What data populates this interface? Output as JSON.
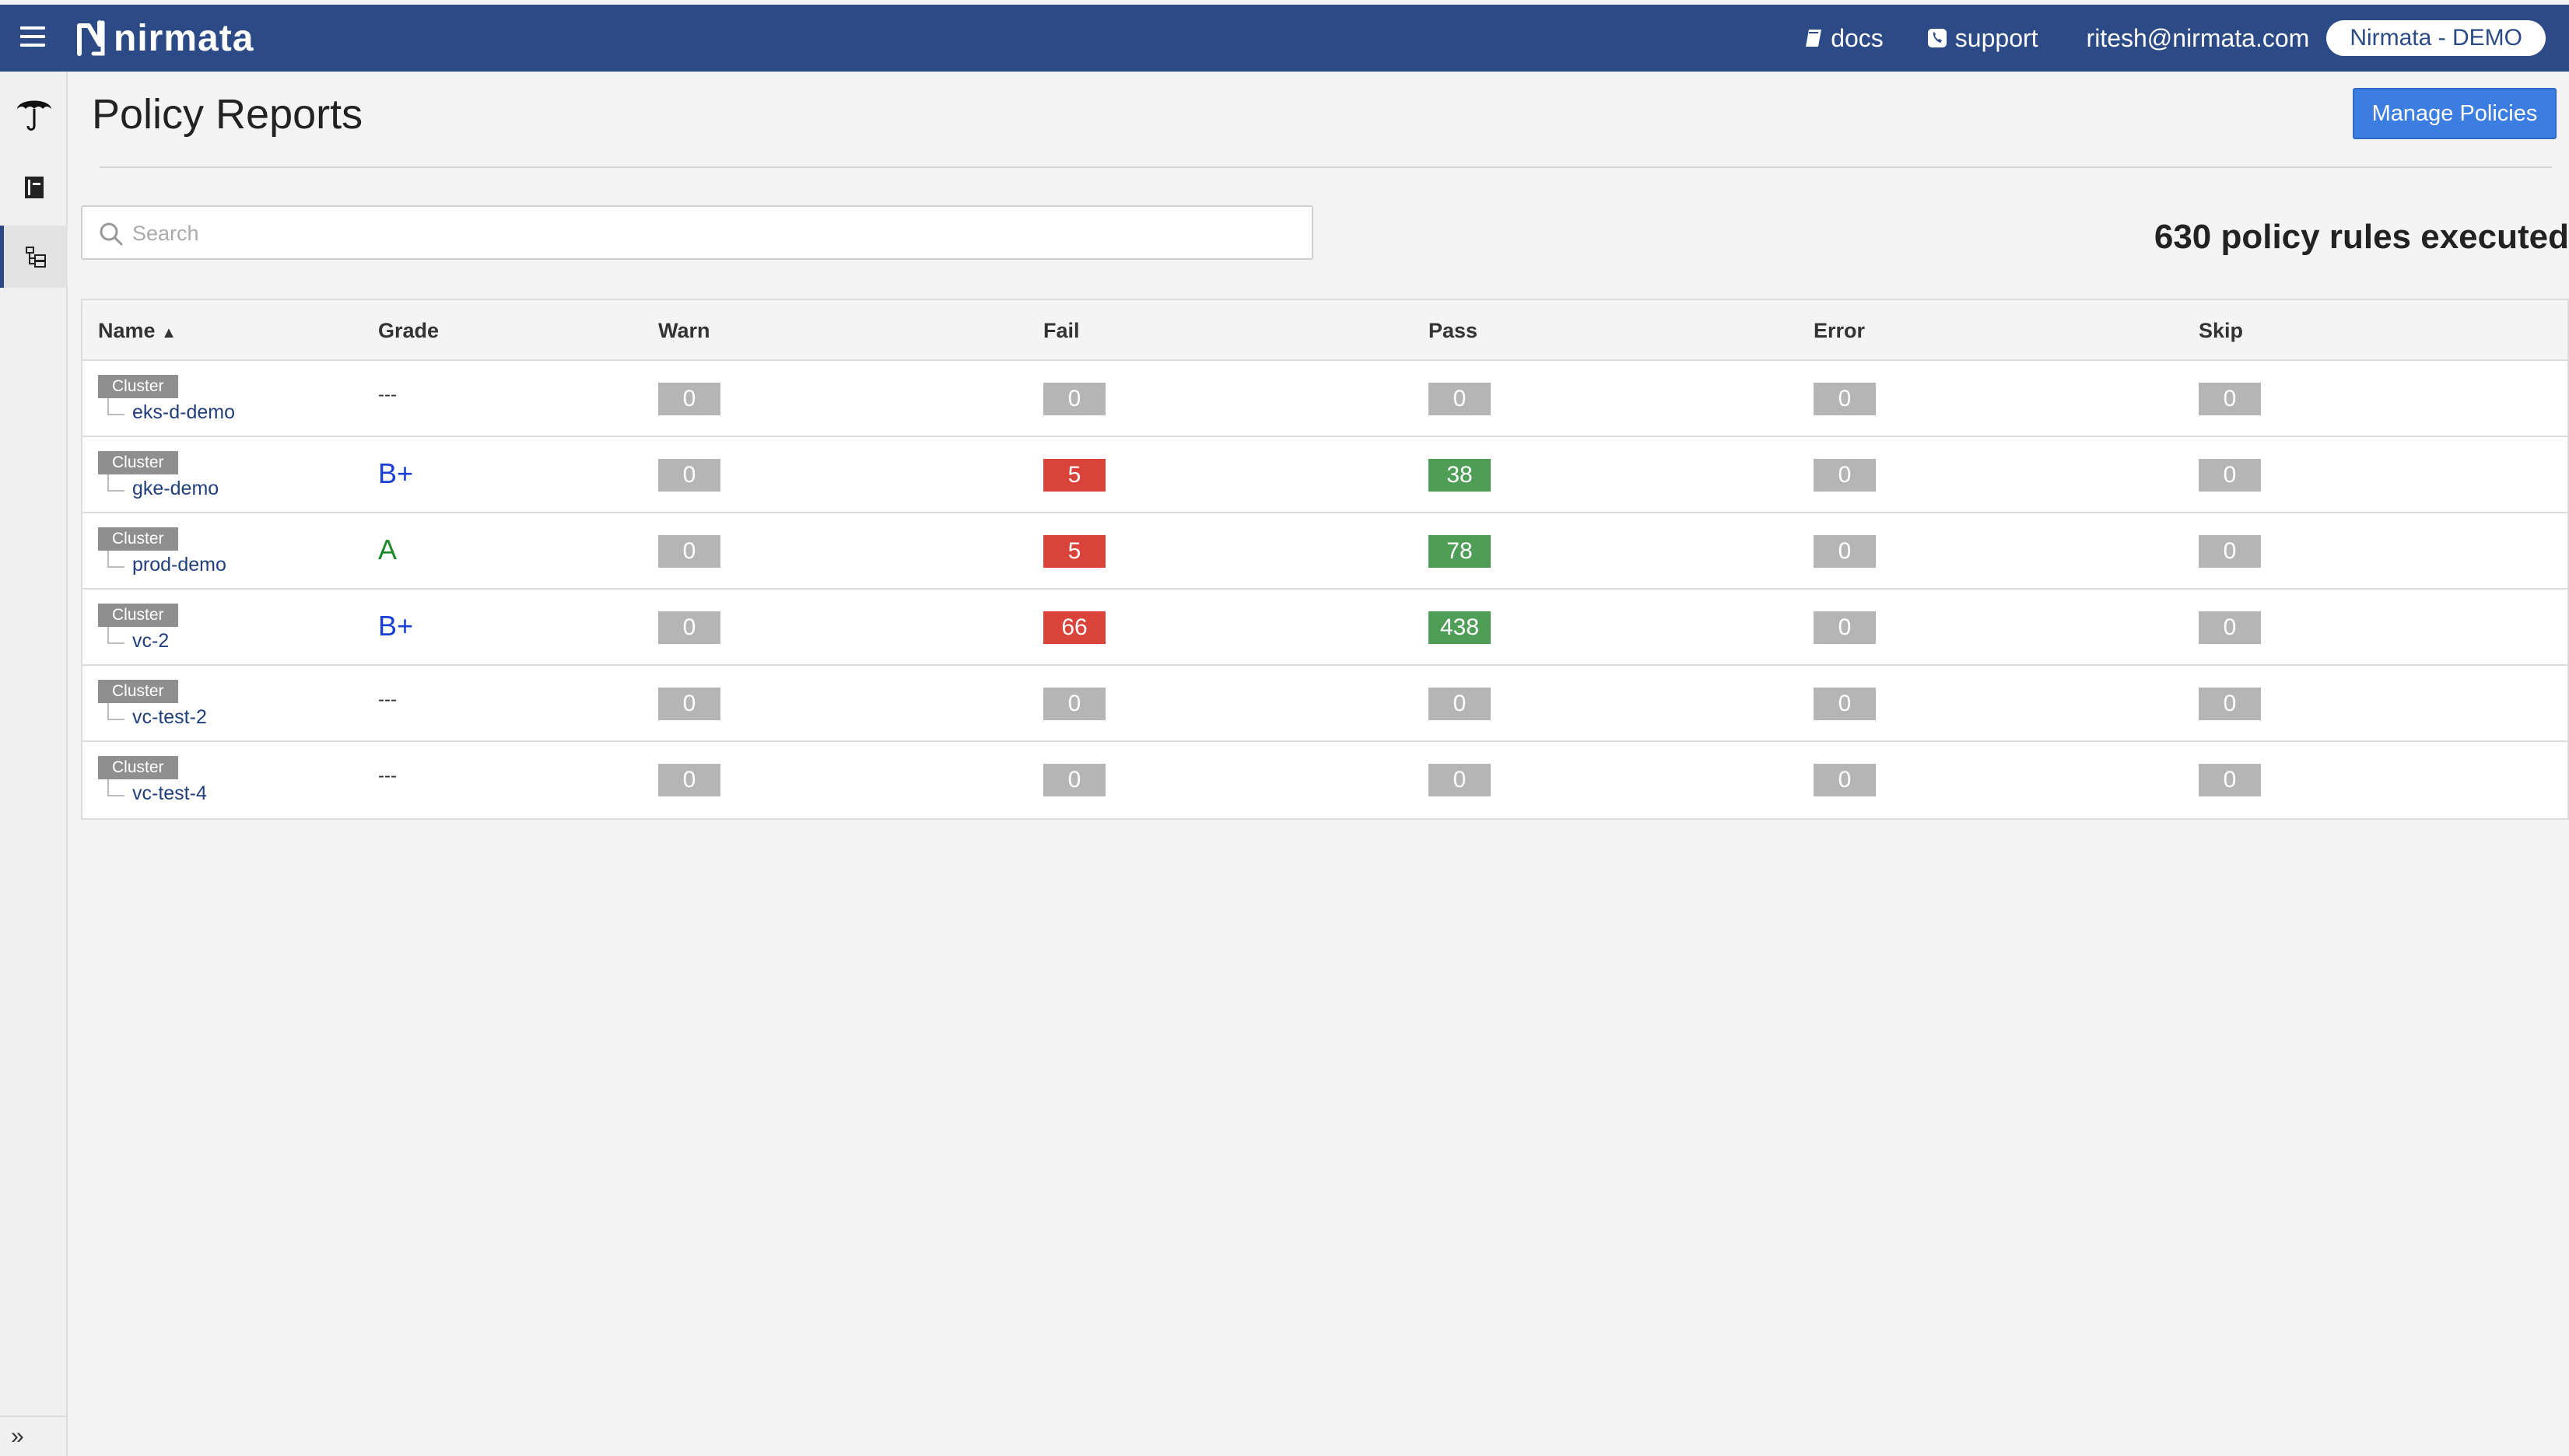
{
  "header": {
    "brand": "nirmata",
    "docs_label": "docs",
    "support_label": "support",
    "user_email": "ritesh@nirmata.com",
    "org_label": "Nirmata - DEMO",
    "icons": {
      "menu": "hamburger-menu-icon",
      "docs": "book-icon",
      "support": "phone-icon"
    }
  },
  "sidebar": {
    "items": [
      {
        "icon": "umbrella-icon"
      },
      {
        "icon": "book-icon"
      },
      {
        "icon": "tree-list-icon",
        "active": true
      }
    ],
    "footer": "»"
  },
  "page": {
    "title": "Policy Reports",
    "manage_button": "Manage Policies",
    "search_placeholder": "Search",
    "summary": "630 policy rules executed"
  },
  "table": {
    "columns": {
      "name": "Name",
      "sort_indicator": "▲",
      "grade": "Grade",
      "warn": "Warn",
      "fail": "Fail",
      "pass": "Pass",
      "error": "Error",
      "skip": "Skip"
    },
    "rows": [
      {
        "type": "Cluster",
        "name": "eks-d-demo",
        "grade": "---",
        "warn": "0",
        "fail": "0",
        "pass": "0",
        "error": "0",
        "skip": "0"
      },
      {
        "type": "Cluster",
        "name": "gke-demo",
        "grade": "B+",
        "warn": "0",
        "fail": "5",
        "pass": "38",
        "error": "0",
        "skip": "0"
      },
      {
        "type": "Cluster",
        "name": "prod-demo",
        "grade": "A",
        "warn": "0",
        "fail": "5",
        "pass": "78",
        "error": "0",
        "skip": "0"
      },
      {
        "type": "Cluster",
        "name": "vc-2",
        "grade": "B+",
        "warn": "0",
        "fail": "66",
        "pass": "438",
        "error": "0",
        "skip": "0"
      },
      {
        "type": "Cluster",
        "name": "vc-test-2",
        "grade": "---",
        "warn": "0",
        "fail": "0",
        "pass": "0",
        "error": "0",
        "skip": "0"
      },
      {
        "type": "Cluster",
        "name": "vc-test-4",
        "grade": "---",
        "warn": "0",
        "fail": "0",
        "pass": "0",
        "error": "0",
        "skip": "0"
      }
    ]
  },
  "colors": {
    "topbar": "#2b4a86",
    "primary_button": "#3b7de0",
    "badge_zero": "#b5b5b5",
    "badge_fail": "#d9433a",
    "badge_pass": "#4f9e58",
    "grade_b_plus": "#1a3fd6",
    "grade_a": "#1f8a2a"
  }
}
